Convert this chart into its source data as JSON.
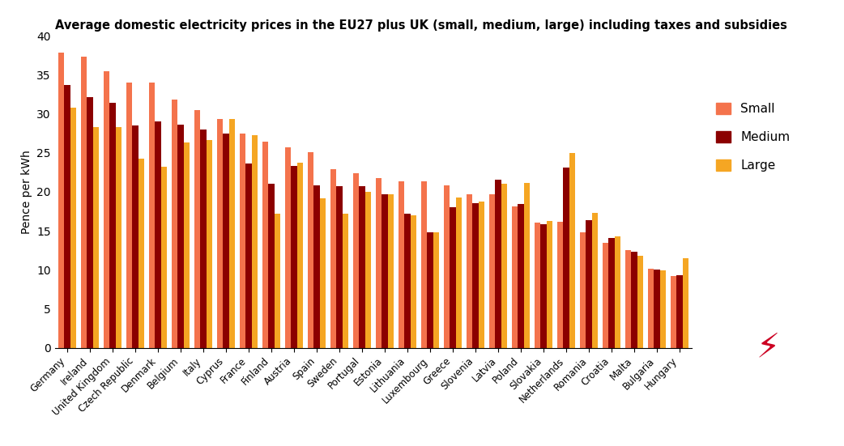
{
  "title": "Average domestic electricity prices in the EU27 plus UK (small, medium, large) including taxes and subsidies",
  "ylabel": "Pence per kWh",
  "ylim": [
    0,
    40
  ],
  "yticks": [
    0,
    5,
    10,
    15,
    20,
    25,
    30,
    35,
    40
  ],
  "categories": [
    "Germany",
    "Ireland",
    "United Kingdom",
    "Czech Republic",
    "Denmark",
    "Belgium",
    "Italy",
    "Cyprus",
    "France",
    "Finland",
    "Austria",
    "Spain",
    "Sweden",
    "Portugal",
    "Estonia",
    "Lithuania",
    "Luxembourg",
    "Greece",
    "Slovenia",
    "Latvia",
    "Poland",
    "Slovakia",
    "Netherlands",
    "Romania",
    "Croatia",
    "Malta",
    "Bulgaria",
    "Hungary"
  ],
  "small": [
    37.8,
    37.3,
    35.4,
    34.0,
    34.0,
    31.8,
    30.5,
    29.3,
    27.5,
    26.4,
    25.7,
    25.1,
    22.9,
    22.4,
    21.8,
    21.3,
    21.3,
    20.8,
    19.7,
    19.7,
    18.1,
    16.1,
    16.2,
    14.8,
    13.5,
    12.5,
    10.1,
    9.2
  ],
  "medium": [
    33.7,
    32.1,
    31.4,
    28.5,
    29.0,
    28.6,
    28.0,
    27.5,
    23.6,
    21.0,
    23.3,
    20.8,
    20.7,
    20.7,
    19.7,
    17.2,
    14.8,
    18.0,
    18.5,
    21.5,
    18.4,
    15.8,
    23.1,
    16.4,
    14.1,
    12.3,
    10.0,
    9.3
  ],
  "large": [
    30.8,
    28.3,
    28.3,
    24.2,
    23.2,
    26.3,
    26.6,
    29.3,
    27.3,
    17.2,
    23.7,
    19.2,
    17.2,
    20.0,
    19.7,
    17.0,
    14.8,
    19.3,
    18.7,
    21.0,
    21.1,
    16.3,
    25.0,
    17.3,
    14.3,
    11.8,
    9.9,
    11.5
  ],
  "color_small": "#F4734C",
  "color_medium": "#8B0000",
  "color_large": "#F5A623",
  "legend_labels": [
    "Small",
    "Medium",
    "Large"
  ],
  "title_fontsize": 10.5,
  "label_fontsize": 10,
  "tick_fontsize": 8.5,
  "lightning_color": "#CC0022"
}
